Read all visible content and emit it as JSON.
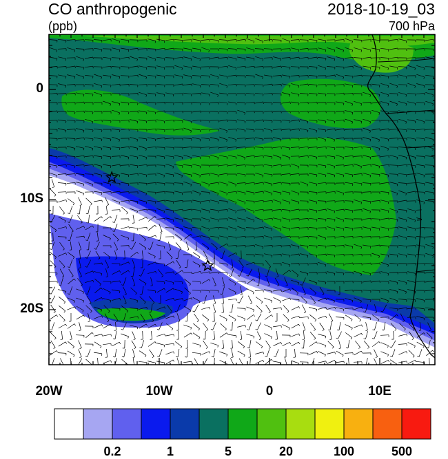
{
  "title": "CO anthropogenic",
  "units": "(ppb)",
  "valid_time": "2018-10-19_03",
  "level": "700 hPa",
  "map": {
    "lon_range": [
      -20,
      15
    ],
    "lat_range": [
      -25,
      5
    ],
    "lat_ticks": [
      {
        "value": 0,
        "label": "0"
      },
      {
        "value": -10,
        "label": "10S"
      },
      {
        "value": -20,
        "label": "20S"
      }
    ],
    "lon_ticks": [
      {
        "value": -20,
        "label": "20W"
      },
      {
        "value": -10,
        "label": "10W"
      },
      {
        "value": 0,
        "label": "0"
      },
      {
        "value": 10,
        "label": "10E"
      }
    ],
    "markers": [
      {
        "name": "star",
        "lon": -14.3,
        "lat": -8.0
      },
      {
        "name": "star",
        "lon": -5.6,
        "lat": -16.0
      }
    ]
  },
  "colorbar": {
    "colors": [
      "#ffffff",
      "#a6a6f2",
      "#6060ee",
      "#0a1aee",
      "#0a3aaa",
      "#0a7060",
      "#10a818",
      "#50c010",
      "#a8dd10",
      "#f0f010",
      "#f8b010",
      "#f86010",
      "#f81a10"
    ],
    "labels": [
      {
        "after_box": 2,
        "text": "0.2"
      },
      {
        "after_box": 4,
        "text": "1"
      },
      {
        "after_box": 6,
        "text": "5"
      },
      {
        "after_box": 8,
        "text": "20"
      },
      {
        "after_box": 10,
        "text": "100"
      },
      {
        "after_box": 12,
        "text": "500"
      }
    ]
  }
}
